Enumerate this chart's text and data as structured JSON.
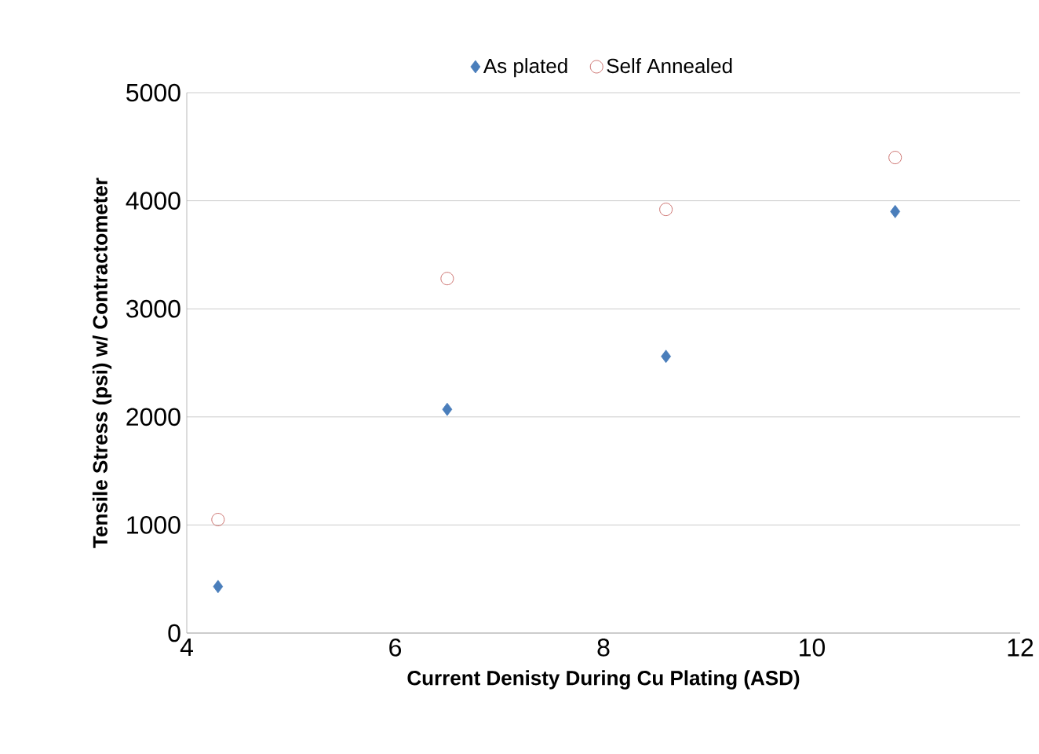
{
  "chart_data": {
    "type": "scatter",
    "xlabel": "Current Denisty During Cu Plating (ASD)",
    "ylabel": "Tensile Stress (psi) w/ Contractometer",
    "x": [
      4.3,
      6.5,
      8.6,
      10.8
    ],
    "series": [
      {
        "name": "As plated",
        "color": "#4a7ebb",
        "marker": "diamond",
        "values": [
          430,
          2070,
          2560,
          3900
        ]
      },
      {
        "name": "Self Annealed",
        "color": "#c0504d",
        "marker": "circle-open",
        "values": [
          1050,
          3280,
          3920,
          4400
        ]
      }
    ],
    "xlim": [
      4,
      12
    ],
    "xticks": [
      4,
      6,
      8,
      10,
      12
    ],
    "ylim": [
      0,
      5000
    ],
    "yticks": [
      0,
      1000,
      2000,
      3000,
      4000,
      5000
    ],
    "grid": "y",
    "legend": "top"
  }
}
